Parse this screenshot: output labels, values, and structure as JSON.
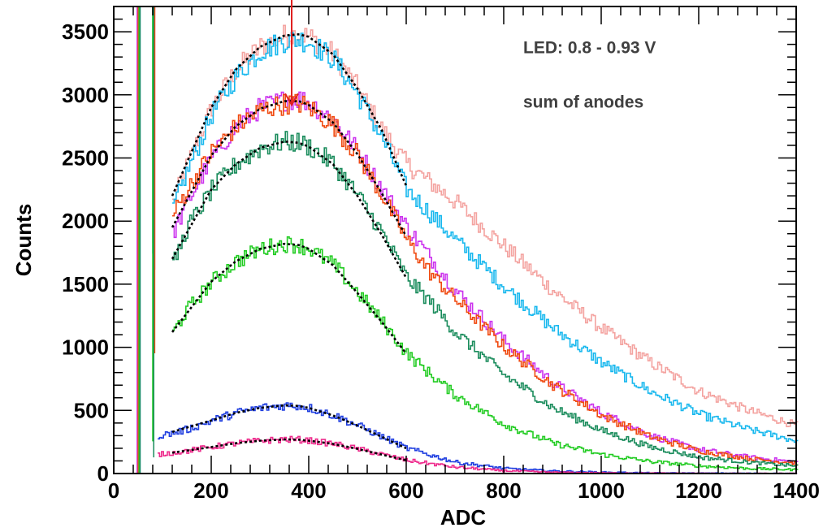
{
  "chart_data": {
    "type": "line",
    "title": "",
    "xlabel": "ADC",
    "ylabel": "Counts",
    "xlim": [
      0,
      1400
    ],
    "ylim": [
      0,
      3700
    ],
    "x_ticks": [
      0,
      200,
      400,
      600,
      800,
      1000,
      1200,
      1400
    ],
    "y_ticks": [
      0,
      500,
      1000,
      1500,
      2000,
      2500,
      3000,
      3500
    ],
    "grid": false,
    "legend": "none",
    "annotations": [
      {
        "text": "LED: 0.8 - 0.93 V"
      },
      {
        "text": "sum of anodes"
      }
    ],
    "marker": {
      "type": "arrow",
      "x": 365,
      "color": "#e02020"
    },
    "series": [
      {
        "color": "#f4a3a0",
        "x": [
          120,
          150,
          200,
          250,
          300,
          350,
          380,
          400,
          450,
          500,
          550,
          600,
          650,
          700,
          800,
          900,
          1000,
          1100,
          1200,
          1300,
          1400
        ],
        "values": [
          2150,
          2450,
          2900,
          3200,
          3380,
          3470,
          3480,
          3460,
          3320,
          3050,
          2720,
          2450,
          2300,
          2150,
          1800,
          1450,
          1150,
          880,
          650,
          500,
          380
        ]
      },
      {
        "color": "#18b8ee",
        "x": [
          120,
          150,
          200,
          250,
          300,
          350,
          380,
          400,
          450,
          500,
          550,
          600,
          650,
          700,
          800,
          900,
          1000,
          1100,
          1200,
          1300,
          1400
        ],
        "values": [
          2100,
          2400,
          2850,
          3150,
          3350,
          3430,
          3440,
          3420,
          3280,
          3000,
          2650,
          2250,
          2050,
          1850,
          1480,
          1150,
          880,
          650,
          470,
          350,
          260
        ]
      },
      {
        "color": "#cc33ee",
        "x": [
          120,
          150,
          200,
          250,
          300,
          350,
          380,
          400,
          450,
          500,
          550,
          600,
          650,
          700,
          800,
          900,
          1000,
          1100,
          1200,
          1300,
          1400
        ],
        "values": [
          1900,
          2150,
          2500,
          2750,
          2900,
          2960,
          2970,
          2940,
          2800,
          2550,
          2250,
          1950,
          1700,
          1450,
          1050,
          720,
          480,
          300,
          190,
          130,
          90
        ]
      },
      {
        "color": "#f04a10",
        "x": [
          120,
          150,
          200,
          250,
          300,
          350,
          380,
          400,
          450,
          500,
          550,
          600,
          650,
          700,
          800,
          900,
          1000,
          1100,
          1200,
          1300,
          1400
        ],
        "values": [
          2050,
          2250,
          2550,
          2750,
          2880,
          2930,
          2930,
          2900,
          2760,
          2520,
          2200,
          1850,
          1580,
          1380,
          1000,
          700,
          460,
          290,
          180,
          120,
          80
        ]
      },
      {
        "color": "#1a8c5c",
        "x": [
          120,
          150,
          200,
          250,
          300,
          350,
          380,
          400,
          450,
          500,
          550,
          600,
          650,
          700,
          800,
          900,
          1000,
          1100,
          1200,
          1300,
          1400
        ],
        "values": [
          1650,
          1950,
          2250,
          2450,
          2580,
          2630,
          2620,
          2590,
          2450,
          2200,
          1900,
          1550,
          1350,
          1120,
          780,
          520,
          340,
          210,
          130,
          90,
          60
        ]
      },
      {
        "color": "#22cc22",
        "x": [
          120,
          150,
          200,
          250,
          300,
          350,
          380,
          400,
          450,
          500,
          550,
          600,
          650,
          700,
          800,
          900,
          1000,
          1100,
          1200,
          1300,
          1400
        ],
        "values": [
          1120,
          1300,
          1520,
          1680,
          1780,
          1820,
          1810,
          1780,
          1650,
          1430,
          1200,
          950,
          780,
          620,
          390,
          240,
          150,
          95,
          60,
          40,
          30
        ]
      },
      {
        "color": "#1f3ee0",
        "x": [
          90,
          120,
          150,
          200,
          250,
          300,
          350,
          380,
          400,
          450,
          500,
          550,
          600,
          700,
          800,
          900,
          1000,
          1100,
          1200,
          1300,
          1400
        ],
        "values": [
          300,
          320,
          350,
          420,
          480,
          520,
          540,
          535,
          520,
          460,
          380,
          290,
          200,
          90,
          40,
          20,
          10,
          5,
          3,
          2,
          1
        ]
      },
      {
        "color": "#ee2a8c",
        "x": [
          90,
          120,
          150,
          200,
          250,
          300,
          350,
          380,
          400,
          450,
          500,
          550,
          600,
          700,
          800,
          900,
          1000,
          1100,
          1200,
          1300,
          1400
        ],
        "values": [
          150,
          165,
          180,
          210,
          240,
          260,
          270,
          268,
          260,
          235,
          195,
          150,
          105,
          50,
          22,
          10,
          5,
          3,
          2,
          1,
          1
        ]
      }
    ],
    "fits": [
      {
        "color": "#000000",
        "x": [
          120,
          200,
          250,
          300,
          350,
          380,
          400,
          450,
          500,
          550,
          600
        ],
        "values": [
          2200,
          2900,
          3200,
          3380,
          3470,
          3480,
          3460,
          3320,
          3050,
          2720,
          2280
        ]
      },
      {
        "color": "#000000",
        "x": [
          120,
          200,
          250,
          300,
          350,
          380,
          400,
          450,
          500,
          550,
          600
        ],
        "values": [
          1950,
          2520,
          2750,
          2890,
          2950,
          2950,
          2920,
          2780,
          2530,
          2220,
          1880
        ]
      },
      {
        "color": "#000000",
        "x": [
          120,
          200,
          250,
          300,
          350,
          380,
          400,
          450,
          500,
          550,
          600
        ],
        "values": [
          1700,
          2250,
          2450,
          2580,
          2630,
          2620,
          2590,
          2450,
          2200,
          1890,
          1550
        ]
      },
      {
        "color": "#000000",
        "x": [
          120,
          200,
          250,
          300,
          350,
          380,
          400,
          450,
          500,
          550,
          600
        ],
        "values": [
          1120,
          1520,
          1680,
          1780,
          1820,
          1810,
          1780,
          1650,
          1430,
          1200,
          950
        ]
      },
      {
        "color": "#000000",
        "x": [
          120,
          200,
          250,
          300,
          350,
          380,
          400,
          450,
          500,
          550,
          600
        ],
        "values": [
          330,
          420,
          480,
          520,
          540,
          535,
          520,
          460,
          380,
          290,
          200
        ]
      },
      {
        "color": "#000000",
        "x": [
          120,
          200,
          250,
          300,
          350,
          380,
          400,
          450,
          500,
          550,
          600
        ],
        "values": [
          165,
          210,
          240,
          260,
          270,
          268,
          260,
          235,
          195,
          150,
          105
        ]
      }
    ]
  }
}
